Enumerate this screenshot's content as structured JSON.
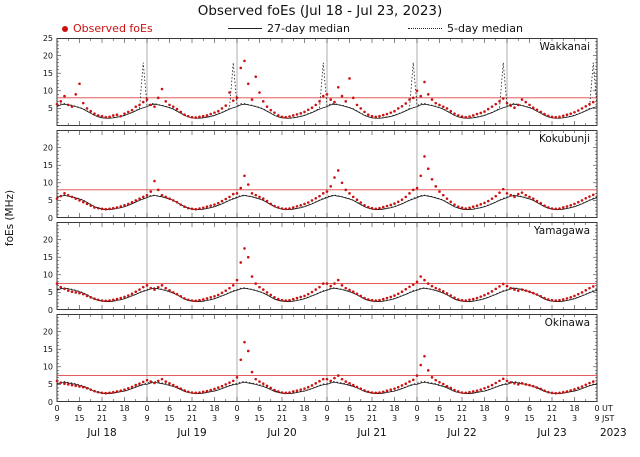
{
  "colors": {
    "observed": "#cc1111",
    "median": "#1a1a1a",
    "threshold": "#e04444",
    "grid": "#9a9a9a",
    "frame": "#3a3a3a"
  },
  "legend": {
    "observed": "Observed foEs",
    "median27": "27-day median",
    "median5": "5-day median"
  },
  "axis": {
    "ut_label": "UT",
    "jst_label": "JST",
    "year": "2023"
  },
  "chart_data": {
    "type": "scatter",
    "title": "Observed foEs (Jul 18 - Jul 23, 2023)",
    "ylabel": "foEs (MHz)",
    "x_unit": "hours UT from Jul 18 00:00 to Jul 23 24:00",
    "x_range_hours": [
      0,
      144
    ],
    "ylim": [
      0,
      25
    ],
    "day_labels": [
      "Jul 18",
      "Jul 19",
      "Jul 20",
      "Jul 21",
      "Jul 22",
      "Jul 23"
    ],
    "ut_ticks": [
      "0",
      "6",
      "12",
      "18",
      "0",
      "6",
      "12",
      "18",
      "0",
      "6",
      "12",
      "18",
      "0",
      "6",
      "12",
      "18",
      "0",
      "6",
      "12",
      "18",
      "0",
      "6",
      "12",
      "18",
      "0"
    ],
    "jst_ticks": [
      "9",
      "15",
      "21",
      "3",
      "9",
      "15",
      "21",
      "3",
      "9",
      "15",
      "21",
      "3",
      "9",
      "15",
      "21",
      "3",
      "9",
      "15",
      "21",
      "3",
      "9",
      "15",
      "21",
      "3",
      "9"
    ],
    "panels": [
      {
        "name": "Wakkanai",
        "yticks": [
          5,
          10,
          15,
          20,
          25
        ],
        "threshold": 8,
        "observed": [
          6.2,
          7.0,
          8.5,
          6.0,
          5.5,
          9.0,
          12.0,
          6.5,
          5.0,
          4.2,
          3.5,
          3.0,
          2.8,
          2.5,
          2.6,
          3.0,
          3.2,
          2.8,
          3.5,
          4.0,
          4.5,
          5.5,
          6.0,
          6.8,
          7.5,
          6.0,
          5.5,
          8.0,
          10.5,
          7.0,
          6.0,
          5.5,
          4.8,
          4.0,
          3.2,
          2.8,
          2.5,
          2.4,
          2.6,
          2.8,
          3.0,
          3.4,
          3.8,
          4.2,
          5.0,
          5.8,
          9.5,
          7.2,
          8.0,
          16.5,
          18.5,
          12.0,
          7.5,
          14.0,
          9.5,
          7.0,
          5.5,
          4.5,
          3.8,
          3.0,
          2.6,
          2.5,
          2.7,
          3.0,
          3.3,
          3.6,
          4.0,
          4.6,
          5.2,
          6.0,
          7.0,
          8.5,
          9.0,
          7.5,
          6.8,
          11.0,
          8.5,
          7.0,
          13.5,
          8.0,
          6.0,
          5.0,
          4.0,
          3.2,
          2.8,
          2.6,
          2.8,
          3.1,
          3.4,
          3.8,
          4.2,
          5.0,
          5.6,
          6.4,
          7.5,
          8.0,
          10.0,
          8.5,
          12.5,
          9.0,
          7.5,
          6.5,
          6.0,
          5.5,
          5.0,
          4.2,
          3.5,
          3.0,
          2.7,
          2.5,
          2.7,
          3.0,
          3.4,
          3.7,
          4.1,
          4.8,
          5.5,
          6.2,
          7.0,
          7.8,
          6.5,
          5.8,
          5.2,
          6.0,
          7.5,
          6.8,
          6.0,
          5.2,
          4.6,
          4.0,
          3.4,
          2.9,
          2.6,
          2.5,
          2.6,
          2.9,
          3.2,
          3.5,
          3.9,
          4.4,
          5.0,
          5.6,
          6.2,
          6.8
        ],
        "median27": [
          5.5,
          6.0,
          6.2,
          6.0,
          5.8,
          5.5,
          5.2,
          4.8,
          4.2,
          3.6,
          3.0,
          2.6,
          2.3,
          2.2,
          2.2,
          2.3,
          2.5,
          2.7,
          3.0,
          3.4,
          3.8,
          4.3,
          4.8,
          5.2
        ],
        "median5": [
          5.8,
          6.3,
          6.4,
          6.1,
          5.9,
          5.6,
          5.3,
          4.9,
          4.3,
          3.7,
          3.1,
          2.7,
          2.4,
          2.2,
          2.3,
          2.4,
          2.6,
          2.8,
          3.1,
          3.5,
          3.9,
          4.4,
          5.0,
          18.0
        ]
      },
      {
        "name": "Kokubunji",
        "yticks": [
          0,
          5,
          10,
          15,
          20
        ],
        "threshold": 8,
        "observed": [
          5.5,
          6.2,
          7.0,
          6.5,
          6.0,
          5.5,
          5.0,
          4.5,
          4.0,
          3.5,
          3.0,
          2.8,
          2.6,
          2.5,
          2.6,
          2.8,
          3.0,
          3.3,
          3.6,
          4.0,
          4.5,
          5.0,
          5.5,
          6.0,
          6.5,
          7.5,
          10.5,
          8.0,
          6.5,
          6.0,
          5.5,
          5.0,
          4.5,
          3.8,
          3.2,
          2.8,
          2.6,
          2.5,
          2.7,
          2.9,
          3.2,
          3.5,
          3.8,
          4.2,
          4.8,
          5.4,
          6.0,
          6.8,
          7.0,
          8.5,
          12.0,
          9.5,
          7.0,
          6.5,
          6.0,
          5.5,
          4.8,
          4.0,
          3.4,
          3.0,
          2.7,
          2.6,
          2.7,
          3.0,
          3.3,
          3.6,
          4.0,
          4.4,
          5.0,
          5.6,
          6.2,
          7.0,
          7.5,
          9.0,
          11.5,
          13.5,
          10.0,
          8.0,
          7.0,
          6.0,
          5.2,
          4.4,
          3.6,
          3.1,
          2.8,
          2.6,
          2.8,
          3.1,
          3.4,
          3.7,
          4.1,
          4.6,
          5.2,
          6.0,
          7.0,
          8.0,
          8.5,
          12.0,
          17.5,
          14.0,
          11.0,
          9.0,
          7.5,
          6.5,
          5.5,
          4.6,
          3.8,
          3.2,
          2.9,
          2.7,
          2.9,
          3.2,
          3.5,
          3.9,
          4.3,
          4.8,
          5.5,
          6.2,
          7.2,
          8.2,
          7.0,
          6.5,
          6.0,
          6.8,
          7.2,
          6.5,
          6.0,
          5.5,
          4.8,
          4.2,
          3.5,
          3.0,
          2.7,
          2.6,
          2.7,
          3.0,
          3.3,
          3.6,
          4.0,
          4.5,
          5.0,
          5.6,
          6.1,
          6.6
        ],
        "median27": [
          5.8,
          6.2,
          6.4,
          6.2,
          6.0,
          5.7,
          5.4,
          5.0,
          4.4,
          3.8,
          3.2,
          2.8,
          2.5,
          2.4,
          2.4,
          2.5,
          2.7,
          2.9,
          3.2,
          3.6,
          4.0,
          4.5,
          5.0,
          5.4
        ],
        "median5": [
          6.0,
          6.4,
          6.5,
          6.3,
          6.1,
          5.8,
          5.5,
          5.1,
          4.5,
          3.9,
          3.3,
          2.9,
          2.6,
          2.4,
          2.5,
          2.6,
          2.8,
          3.0,
          3.3,
          3.7,
          4.1,
          4.6,
          5.1,
          5.6
        ]
      },
      {
        "name": "Yamagawa",
        "yticks": [
          0,
          5,
          10,
          15,
          20
        ],
        "threshold": 7.5,
        "observed": [
          7.5,
          6.5,
          6.0,
          5.5,
          5.2,
          5.0,
          4.8,
          4.5,
          4.0,
          3.6,
          3.2,
          2.9,
          2.7,
          2.6,
          2.7,
          2.9,
          3.1,
          3.4,
          3.7,
          4.1,
          4.6,
          5.2,
          5.8,
          6.5,
          7.0,
          6.2,
          5.8,
          6.5,
          7.0,
          6.2,
          5.6,
          5.0,
          4.5,
          3.9,
          3.3,
          2.9,
          2.7,
          2.6,
          2.8,
          3.0,
          3.3,
          3.6,
          3.9,
          4.3,
          4.9,
          5.5,
          6.2,
          7.0,
          8.5,
          13.5,
          17.5,
          15.0,
          9.5,
          7.5,
          6.5,
          5.8,
          5.0,
          4.3,
          3.6,
          3.1,
          2.8,
          2.7,
          2.8,
          3.1,
          3.4,
          3.7,
          4.0,
          4.5,
          5.1,
          5.8,
          6.5,
          7.5,
          7.5,
          6.8,
          7.5,
          8.5,
          7.0,
          6.2,
          5.7,
          5.2,
          4.6,
          4.0,
          3.4,
          3.0,
          2.8,
          2.7,
          2.8,
          3.1,
          3.4,
          3.7,
          4.1,
          4.6,
          5.2,
          5.9,
          6.6,
          7.2,
          8.0,
          9.5,
          8.5,
          7.5,
          6.8,
          6.2,
          5.8,
          5.3,
          4.7,
          4.1,
          3.5,
          3.0,
          2.8,
          2.7,
          2.9,
          3.1,
          3.4,
          3.8,
          4.2,
          4.7,
          5.3,
          6.0,
          6.7,
          7.4,
          6.8,
          6.2,
          5.8,
          5.5,
          5.8,
          5.5,
          5.2,
          4.8,
          4.4,
          3.9,
          3.4,
          3.0,
          2.8,
          2.7,
          2.8,
          3.0,
          3.3,
          3.6,
          4.0,
          4.5,
          5.0,
          5.6,
          6.2,
          6.7
        ],
        "median27": [
          5.6,
          6.0,
          6.2,
          6.0,
          5.8,
          5.5,
          5.2,
          4.8,
          4.3,
          3.7,
          3.1,
          2.7,
          2.5,
          2.4,
          2.4,
          2.5,
          2.7,
          2.9,
          3.2,
          3.6,
          4.0,
          4.4,
          4.9,
          5.3
        ],
        "median5": [
          5.8,
          6.2,
          6.3,
          6.1,
          5.9,
          5.6,
          5.3,
          4.9,
          4.4,
          3.8,
          3.2,
          2.8,
          2.6,
          2.5,
          2.5,
          2.6,
          2.8,
          3.0,
          3.3,
          3.7,
          4.1,
          4.5,
          5.0,
          5.5
        ]
      },
      {
        "name": "Okinawa",
        "yticks": [
          0,
          5,
          10,
          15,
          20
        ],
        "threshold": 7.5,
        "observed": [
          6.0,
          5.5,
          5.2,
          5.0,
          4.8,
          4.6,
          4.4,
          4.2,
          3.9,
          3.5,
          3.1,
          2.8,
          2.6,
          2.5,
          2.6,
          2.8,
          3.0,
          3.2,
          3.5,
          3.9,
          4.3,
          4.8,
          5.2,
          5.7,
          6.2,
          5.8,
          5.4,
          6.0,
          6.5,
          5.8,
          5.3,
          4.8,
          4.3,
          3.8,
          3.3,
          2.9,
          2.7,
          2.6,
          2.7,
          2.9,
          3.1,
          3.4,
          3.7,
          4.1,
          4.5,
          5.0,
          5.5,
          6.0,
          7.0,
          12.0,
          17.0,
          14.5,
          8.5,
          6.5,
          5.8,
          5.2,
          4.6,
          4.0,
          3.4,
          3.0,
          2.7,
          2.6,
          2.7,
          3.0,
          3.2,
          3.5,
          3.8,
          4.2,
          4.7,
          5.3,
          5.9,
          6.5,
          6.5,
          6.0,
          6.8,
          7.5,
          6.5,
          5.8,
          5.3,
          4.8,
          4.3,
          3.8,
          3.3,
          2.9,
          2.7,
          2.6,
          2.7,
          2.9,
          3.2,
          3.5,
          3.8,
          4.2,
          4.7,
          5.2,
          5.8,
          6.3,
          7.5,
          10.5,
          13.0,
          9.0,
          7.0,
          6.2,
          5.6,
          5.1,
          4.5,
          4.0,
          3.4,
          3.0,
          2.7,
          2.6,
          2.8,
          3.0,
          3.2,
          3.5,
          3.9,
          4.3,
          4.8,
          5.4,
          6.0,
          6.6,
          6.0,
          5.6,
          5.3,
          5.0,
          5.3,
          5.0,
          4.8,
          4.5,
          4.1,
          3.7,
          3.2,
          2.8,
          2.6,
          2.5,
          2.6,
          2.8,
          3.0,
          3.3,
          3.6,
          4.0,
          4.4,
          4.9,
          5.4,
          5.8
        ],
        "median27": [
          5.0,
          5.4,
          5.6,
          5.4,
          5.2,
          5.0,
          4.7,
          4.4,
          4.0,
          3.5,
          3.0,
          2.7,
          2.5,
          2.4,
          2.4,
          2.5,
          2.7,
          2.9,
          3.1,
          3.4,
          3.8,
          4.2,
          4.6,
          4.9
        ],
        "median5": [
          5.3,
          5.7,
          5.8,
          5.6,
          5.4,
          5.2,
          4.9,
          4.6,
          4.2,
          3.7,
          3.2,
          2.9,
          2.6,
          2.5,
          2.5,
          2.6,
          2.8,
          3.0,
          3.2,
          3.5,
          3.9,
          4.3,
          4.7,
          5.1
        ]
      }
    ]
  }
}
